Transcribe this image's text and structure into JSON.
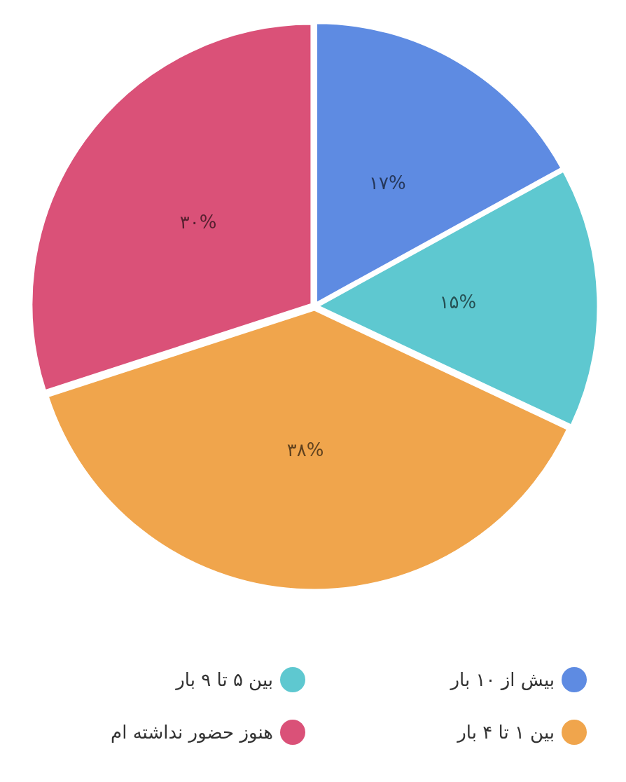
{
  "chart_data": {
    "type": "pie",
    "categories": [
      "بیش از ۱۰ بار",
      "بین ۵ تا ۹ بار",
      "بین ۱ تا ۴ بار",
      "هنوز حضور نداشته ام"
    ],
    "values": [
      17,
      15,
      38,
      30
    ],
    "value_labels": [
      "۱۷%",
      "۱۵%",
      "۳۸%",
      "۳۰%"
    ],
    "colors": [
      "#5e8be2",
      "#5ec8d0",
      "#f0a54c",
      "#da5178"
    ],
    "legend": "bottom"
  }
}
